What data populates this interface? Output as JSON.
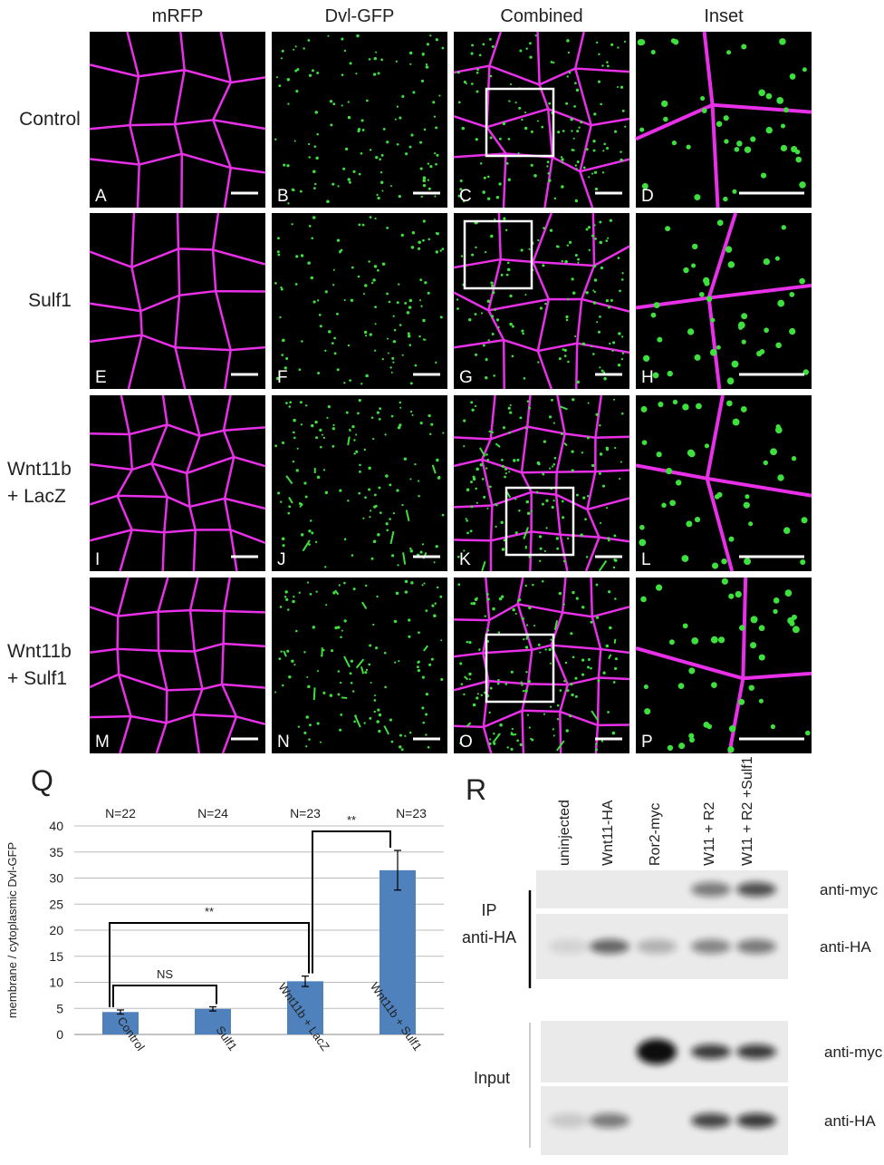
{
  "column_headers": [
    "mRFP",
    "Dvl-GFP",
    "Combined",
    "Inset"
  ],
  "row_labels": [
    [
      "Control"
    ],
    [
      "Sulf1"
    ],
    [
      "Wnt11b",
      "+ LacZ"
    ],
    [
      "Wnt11b",
      "+ Sulf1"
    ]
  ],
  "panel_letters": [
    "A",
    "B",
    "C",
    "D",
    "E",
    "F",
    "G",
    "H",
    "I",
    "J",
    "K",
    "L",
    "M",
    "N",
    "O",
    "P"
  ],
  "chart_data": {
    "type": "bar",
    "panel_label": "Q",
    "ylabel": "membrane / cytoplasmic Dvl-GFP",
    "categories": [
      "Control",
      "Sulf1",
      "Wnt11b + LacZ",
      "Wnt11b + Sulf1"
    ],
    "values": [
      4.3,
      4.9,
      10.2,
      31.5
    ],
    "errors": [
      0.4,
      0.4,
      1.0,
      3.8
    ],
    "annotations": [
      "N=22",
      "N=24",
      "N=23",
      "N=23"
    ],
    "significance": [
      "NS",
      "**",
      "**"
    ],
    "color": "#4f81bd",
    "ylim": [
      0,
      40
    ],
    "yticks": [
      0,
      5,
      10,
      15,
      20,
      25,
      30,
      35,
      40
    ],
    "grid": true
  },
  "blot": {
    "panel_label": "R",
    "lanes": [
      "uninjected",
      "Wnt11-HA",
      "Ror2-myc",
      "W11 + R2",
      "W11 + R2\n+Sulf1"
    ],
    "groups": [
      [
        "IP",
        "anti-HA"
      ],
      [
        "Input"
      ]
    ],
    "strip_labels": [
      "anti-myc",
      "anti-HA",
      "anti-myc",
      "anti-HA"
    ]
  }
}
